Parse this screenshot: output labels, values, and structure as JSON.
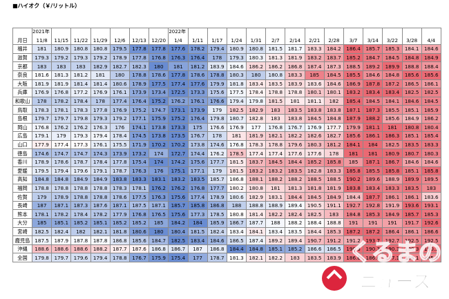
{
  "title": "■ハイオク（￥/リットル）",
  "corner_label": "月日",
  "year_row": [
    "2021年",
    null,
    null,
    null,
    null,
    null,
    null,
    "2022年",
    null,
    null,
    null,
    null,
    null,
    null,
    null,
    null,
    null,
    null,
    null,
    null,
    null
  ],
  "columns": [
    "11/8",
    "11/15",
    "11/22",
    "11/29",
    "12/6",
    "12/13",
    "12/20",
    "1/4",
    "1/11",
    "1/17",
    "1/24",
    "1/31",
    "2/7",
    "2/14",
    "2/21",
    "2/28",
    "3/7",
    "3/14",
    "3/22",
    "3/28",
    "4/4"
  ],
  "rows": [
    {
      "label": "福井",
      "values": [
        181.0,
        180.9,
        180.8,
        180.8,
        179.5,
        177.8,
        177.8,
        177.6,
        178.2,
        179.4,
        180.9,
        180.8,
        181.5,
        181.7,
        183.3,
        184.2,
        186.4,
        185.7,
        185.3,
        184.1,
        184.6
      ]
    },
    {
      "label": "滋賀",
      "values": [
        179.3,
        179.2,
        179.3,
        179.2,
        178.9,
        177.8,
        176.8,
        176.3,
        176.4,
        178.0,
        179.3,
        180.3,
        181.3,
        181.9,
        183.2,
        183.7,
        185.2,
        184.7,
        184.5,
        184.8,
        184.9
      ]
    },
    {
      "label": "京都",
      "values": [
        183.0,
        183.0,
        183.0,
        182.9,
        182.7,
        182.3,
        180.0,
        181.0,
        181.2,
        183.9,
        184.6,
        186.2,
        186.2,
        186.8,
        187.4,
        187.3,
        188.5,
        189.2,
        189.9,
        188.8,
        188.4
      ]
    },
    {
      "label": "奈良",
      "values": [
        181.6,
        181.3,
        181.2,
        181.0,
        180.0,
        178.8,
        178.6,
        177.8,
        178.6,
        178.8,
        180.3,
        180.0,
        180.8,
        183.3,
        185.0,
        184.5,
        185.5,
        184.6,
        184.8,
        185.6,
        185.6
      ]
    },
    {
      "label": "大阪",
      "values": [
        181.9,
        181.9,
        181.4,
        181.4,
        180.6,
        178.9,
        177.5,
        177.4,
        177.6,
        179.9,
        181.8,
        183.4,
        183.5,
        183.9,
        183.6,
        184.6,
        186.9,
        187.8,
        187.2,
        186.5,
        186.1
      ]
    },
    {
      "label": "兵庫",
      "values": [
        176.9,
        176.8,
        177.2,
        176.9,
        176.1,
        173.9,
        173.4,
        172.5,
        173.3,
        175.6,
        177.5,
        178.4,
        178.8,
        178.8,
        180.1,
        180.1,
        183.2,
        183.4,
        183.4,
        182.5,
        182.5
      ]
    },
    {
      "label": "和歌山",
      "values": [
        178.0,
        178.2,
        178.4,
        178.0,
        177.4,
        176.4,
        175.2,
        176.2,
        176.1,
        176.6,
        179.4,
        179.8,
        181.5,
        181.0,
        181.1,
        182.0,
        185.4,
        184.5,
        184.1,
        184.6,
        184.5
      ]
    },
    {
      "label": "鳥取",
      "values": [
        178.3,
        178.1,
        178.3,
        177.8,
        176.9,
        175.2,
        174.7,
        173.1,
        173.9,
        179.0,
        182.5,
        182.9,
        183.0,
        183.5,
        183.8,
        183.8,
        187.1,
        187.3,
        185.5,
        185.1,
        185.9
      ]
    },
    {
      "label": "島根",
      "values": [
        179.7,
        179.7,
        179.8,
        179.3,
        179.2,
        177.1,
        175.9,
        175.2,
        176.4,
        179.8,
        180.7,
        182.8,
        183.0,
        183.8,
        184.5,
        184.8,
        187.9,
        188.2,
        185.6,
        184.9,
        186.2
      ]
    },
    {
      "label": "岡山",
      "values": [
        176.8,
        176.2,
        176.2,
        176.3,
        176.0,
        174.1,
        173.8,
        173.3,
        175.0,
        176.6,
        176.9,
        177.0,
        176.8,
        176.7,
        176.9,
        177.7,
        179.9,
        181.1,
        181.0,
        180.8,
        180.4
      ]
    },
    {
      "label": "広島",
      "values": [
        179.1,
        179.0,
        179.3,
        179.4,
        178.4,
        174.5,
        173.8,
        173.5,
        176.7,
        178.0,
        181.0,
        181.9,
        182.1,
        182.2,
        182.6,
        182.7,
        185.6,
        186.1,
        186.3,
        185.1,
        185.4
      ]
    },
    {
      "label": "山口",
      "values": [
        177.9,
        177.4,
        177.3,
        176.1,
        175.5,
        171.9,
        170.2,
        170.2,
        173.8,
        174.6,
        176.8,
        178.3,
        178.8,
        179.6,
        180.3,
        181.2,
        184.1,
        184.0,
        182.5,
        183.5,
        183.3
      ]
    },
    {
      "label": "徳島",
      "values": [
        174.6,
        174.7,
        174.7,
        174.3,
        173.9,
        173.2,
        174.0,
        172.7,
        174.4,
        176.2,
        178.5,
        177.4,
        177.4,
        177.6,
        177.6,
        178.0,
        181.0,
        181.0,
        180.9,
        180.7,
        180.3
      ]
    },
    {
      "label": "香川",
      "values": [
        178.9,
        178.6,
        178.7,
        178.4,
        177.8,
        175.4,
        174.0,
        174.2,
        175.6,
        177.7,
        181.5,
        183.7,
        184.5,
        184.4,
        185.2,
        185.8,
        185.0,
        187.1,
        186.7,
        184.6,
        184.6
      ]
    },
    {
      "label": "愛媛",
      "values": [
        179.5,
        179.4,
        179.6,
        179.1,
        178.7,
        176.3,
        176.0,
        175.1,
        177.1,
        179.0,
        181.5,
        183.2,
        183.2,
        183.5,
        182.8,
        183.3,
        185.8,
        185.5,
        185.8,
        185.1,
        185.8
      ]
    },
    {
      "label": "高知",
      "values": [
        184.8,
        184.8,
        184.9,
        184.9,
        183.8,
        183.3,
        183.1,
        183.2,
        183.5,
        185.7,
        186.8,
        188.1,
        188.2,
        188.2,
        188.5,
        188.5,
        190.2,
        189.6,
        188.9,
        189.9,
        189.5
      ]
    },
    {
      "label": "福岡",
      "values": [
        178.8,
        178.8,
        178.8,
        178.8,
        178.3,
        178.1,
        176.2,
        176.2,
        176.8,
        177.7,
        180.2,
        180.8,
        181.0,
        181.3,
        181.8,
        181.9,
        183.8,
        183.4,
        183.3,
        183.5,
        183.0
      ]
    },
    {
      "label": "佐賀",
      "values": [
        179.0,
        178.9,
        178.8,
        178.8,
        178.6,
        177.5,
        176.3,
        175.6,
        177.4,
        178.9,
        180.6,
        182.9,
        183.1,
        184.4,
        184.5,
        184.9,
        184.4,
        187.7,
        186.1,
        186.1,
        183.6
      ]
    },
    {
      "label": "長崎",
      "values": [
        187.0,
        187.1,
        187.3,
        187.6,
        187.1,
        187.5,
        187.1,
        185.7,
        185.8,
        186.8,
        188.0,
        188.8,
        188.9,
        189.4,
        190.5,
        191.1,
        192.7,
        192.8,
        191.9,
        193.6,
        193.1
      ]
    },
    {
      "label": "熊本",
      "values": [
        178.1,
        178.2,
        178.4,
        178.2,
        177.9,
        176.8,
        176.5,
        175.6,
        177.3,
        178.5,
        180.8,
        181.4,
        182.2,
        182.4,
        182.5,
        183.0,
        184.8,
        185.3,
        184.9,
        185.7,
        185.3
      ]
    },
    {
      "label": "大分",
      "values": [
        185.0,
        185.1,
        185.2,
        185.1,
        185.2,
        185.2,
        185.0,
        184.2,
        184.0,
        185.9,
        186.7,
        187.7,
        188.0,
        188.2,
        188.4,
        188.8,
        191.0,
        191.0,
        191.0,
        191.7,
        192.6
      ]
    },
    {
      "label": "宮崎",
      "values": [
        182.5,
        182.4,
        182.0,
        182.1,
        181.8,
        180.6,
        180.0,
        180.4,
        181.5,
        182.4,
        183.4,
        184.1,
        183.4,
        183.5,
        184.4,
        185.3,
        187.2,
        187.2,
        186.4,
        186.1,
        186.6
      ]
    },
    {
      "label": "鹿児島",
      "values": [
        187.5,
        187.9,
        187.8,
        187.8,
        186.8,
        185.6,
        184.7,
        182.5,
        183.4,
        184.6,
        186.5,
        187.4,
        189.2,
        189.4,
        190.7,
        191.2,
        191.2,
        193.7,
        192.7,
        192.5,
        192.5
      ]
    },
    {
      "label": "沖縄",
      "values": [
        188.6,
        188.6,
        188.6,
        188.2,
        187.7,
        187.6,
        186.8,
        186.7,
        187.0,
        186.8,
        184.4,
        184.8,
        185.1,
        185.2,
        186.6,
        186.5,
        190.3,
        190.3,
        190.3,
        190.3,
        190.3
      ]
    },
    {
      "label": "全国",
      "values": [
        179.8,
        179.7,
        179.6,
        179.4,
        178.8,
        176.7,
        175.9,
        175.4,
        177.0,
        178.7,
        181.3,
        182.1,
        182.2,
        183.0,
        183.5,
        183.9,
        186.6,
        186.6,
        187.1,
        186.1,
        185.9
      ]
    }
  ],
  "watermark": {
    "line1": "くるまの",
    "line2": "ニュース"
  }
}
